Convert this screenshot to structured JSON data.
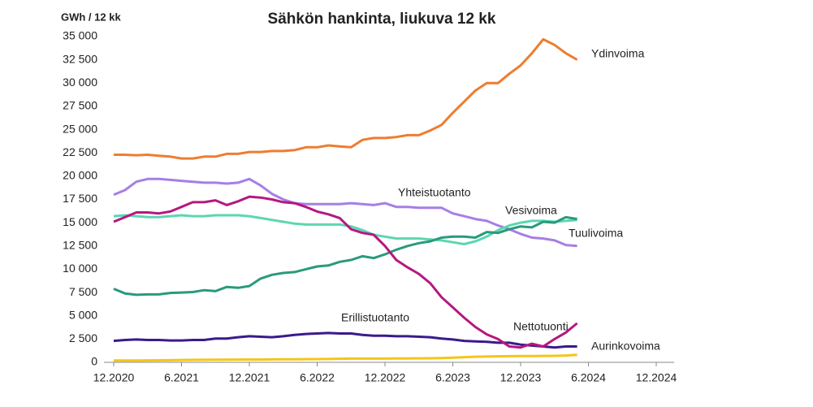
{
  "chart_data": {
    "type": "line",
    "title": "Sähkön hankinta, liukuva 12 kk",
    "y_label": "GWh / 12 kk",
    "x": [
      "12.2020",
      "1.2021",
      "2.2021",
      "3.2021",
      "4.2021",
      "5.2021",
      "6.2021",
      "7.2021",
      "8.2021",
      "9.2021",
      "10.2021",
      "11.2021",
      "12.2021",
      "1.2022",
      "2.2022",
      "3.2022",
      "4.2022",
      "5.2022",
      "6.2022",
      "7.2022",
      "8.2022",
      "9.2022",
      "10.2022",
      "11.2022",
      "12.2022",
      "1.2023",
      "2.2023",
      "3.2023",
      "4.2023",
      "5.2023",
      "6.2023",
      "7.2023",
      "8.2023",
      "9.2023",
      "10.2023",
      "11.2023",
      "12.2023",
      "1.2024",
      "2.2024",
      "3.2024",
      "4.2024",
      "5.2024"
    ],
    "xlim": [
      "12.2020",
      "12.2024"
    ],
    "xticks": [
      "12.2020",
      "6.2021",
      "12.2021",
      "6.2022",
      "12.2022",
      "6.2023",
      "12.2023",
      "6.2024",
      "12.2024"
    ],
    "ylim": [
      0,
      35000
    ],
    "yticks": [
      0,
      {
        "value": 2500,
        "label": "2 500"
      },
      {
        "value": 5000,
        "label": "5 000"
      },
      {
        "value": 7500,
        "label": "7 500"
      },
      {
        "value": 10000,
        "label": "10 000"
      },
      {
        "value": 12500,
        "label": "12 500"
      },
      {
        "value": 15000,
        "label": "15 000"
      },
      {
        "value": 17500,
        "label": "17 500"
      },
      {
        "value": 20000,
        "label": "20 000"
      },
      {
        "value": 22500,
        "label": "22 500"
      },
      {
        "value": 25000,
        "label": "25 000"
      },
      {
        "value": 27500,
        "label": "27 500"
      },
      {
        "value": 30000,
        "label": "30 000"
      },
      {
        "value": 32500,
        "label": "32 500"
      },
      {
        "value": 35000,
        "label": "35 000"
      }
    ],
    "grid": false,
    "series": [
      {
        "name": "Ydinvoima",
        "color": "#ed7d31",
        "values": [
          22300,
          22300,
          22250,
          22300,
          22200,
          22100,
          21900,
          21900,
          22100,
          22100,
          22400,
          22400,
          22600,
          22600,
          22700,
          22700,
          22800,
          23100,
          23100,
          23300,
          23200,
          23100,
          23900,
          24100,
          24100,
          24200,
          24400,
          24400,
          24900,
          25500,
          26800,
          28000,
          29200,
          30000,
          30000,
          31000,
          31900,
          33200,
          34700,
          34100,
          33200,
          32500
        ]
      },
      {
        "name": "Yhteistuotanto",
        "color": "#a57fe6",
        "values": [
          18000,
          18500,
          19400,
          19700,
          19700,
          19600,
          19500,
          19400,
          19300,
          19300,
          19200,
          19300,
          19700,
          19000,
          18100,
          17500,
          17100,
          17000,
          17000,
          17000,
          17000,
          17100,
          17000,
          16900,
          17100,
          16700,
          16700,
          16600,
          16600,
          16600,
          16000,
          15700,
          15400,
          15200,
          14700,
          14300,
          13800,
          13400,
          13300,
          13100,
          12600,
          12500
        ]
      },
      {
        "name": "Vesivoima",
        "color": "#5cd6b2",
        "values": [
          15700,
          15800,
          15700,
          15600,
          15600,
          15700,
          15800,
          15700,
          15700,
          15800,
          15800,
          15800,
          15700,
          15500,
          15300,
          15100,
          14900,
          14800,
          14800,
          14800,
          14800,
          14600,
          14200,
          13700,
          13500,
          13300,
          13300,
          13300,
          13200,
          13100,
          12900,
          12700,
          13000,
          13500,
          14200,
          14700,
          15000,
          15200,
          15200,
          15100,
          15200,
          15300
        ]
      },
      {
        "name": "Tuulivoima",
        "color": "#2a9a7c",
        "values": [
          7900,
          7400,
          7250,
          7300,
          7300,
          7450,
          7500,
          7550,
          7750,
          7650,
          8100,
          8000,
          8200,
          9000,
          9400,
          9600,
          9700,
          10000,
          10300,
          10400,
          10800,
          11000,
          11400,
          11200,
          11600,
          12100,
          12500,
          12800,
          13000,
          13400,
          13500,
          13500,
          13400,
          14000,
          13900,
          14300,
          14600,
          14500,
          15100,
          15000,
          15600,
          15400
        ]
      },
      {
        "name": "Erillistuotanto",
        "color": "#3b1a8c",
        "values": [
          2300,
          2400,
          2450,
          2400,
          2400,
          2350,
          2350,
          2400,
          2400,
          2550,
          2550,
          2700,
          2800,
          2750,
          2700,
          2800,
          2950,
          3050,
          3100,
          3150,
          3100,
          3100,
          2950,
          2850,
          2850,
          2800,
          2800,
          2750,
          2700,
          2550,
          2450,
          2300,
          2250,
          2200,
          2100,
          2100,
          1900,
          1800,
          1700,
          1600,
          1700,
          1700
        ]
      },
      {
        "name": "Nettotuonti",
        "color": "#b5187f",
        "values": [
          15100,
          15600,
          16100,
          16100,
          16000,
          16200,
          16700,
          17200,
          17200,
          17400,
          16900,
          17300,
          17800,
          17700,
          17500,
          17200,
          17100,
          16700,
          16200,
          15900,
          15500,
          14300,
          13900,
          13700,
          12500,
          11000,
          10200,
          9500,
          8500,
          7000,
          5900,
          4800,
          3800,
          3000,
          2500,
          1700,
          1600,
          2000,
          1700,
          2500,
          3200,
          4200
        ]
      },
      {
        "name": "Aurinkovoima",
        "color": "#f5c518",
        "values": [
          200,
          200,
          200,
          210,
          220,
          230,
          250,
          260,
          270,
          280,
          290,
          300,
          300,
          300,
          310,
          320,
          330,
          340,
          350,
          360,
          380,
          400,
          400,
          400,
          400,
          410,
          420,
          430,
          440,
          460,
          500,
          550,
          600,
          620,
          650,
          660,
          670,
          680,
          690,
          700,
          730,
          800
        ]
      }
    ]
  }
}
